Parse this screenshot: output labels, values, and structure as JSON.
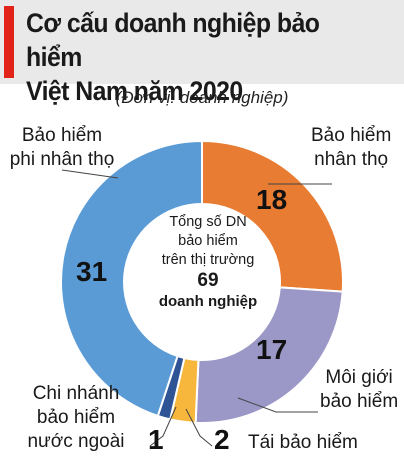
{
  "chart_data": {
    "type": "pie",
    "title_line1": "Cơ cấu doanh nghiệp bảo hiểm",
    "title_line2": "Việt Nam năm 2020",
    "subtitle": "(Đơn vị: doanh nghiệp)",
    "center": {
      "line1": "Tổng số DN",
      "line2": "bảo hiểm",
      "line3": "trên thị trường",
      "total": "69",
      "unit": "doanh nghiệp"
    },
    "slices": [
      {
        "key": "nhantho",
        "label_lines": [
          "Bảo hiểm",
          "nhân thọ"
        ],
        "value": 18,
        "color": "#e97c33"
      },
      {
        "key": "moigioi",
        "label_lines": [
          "Môi giới",
          "bảo hiểm"
        ],
        "value": 17,
        "color": "#9b97c6"
      },
      {
        "key": "taibaohiem",
        "label_lines": [
          "Tái bảo hiểm"
        ],
        "value": 2,
        "color": "#f6b73c"
      },
      {
        "key": "chinhanh",
        "label_lines": [
          "Chi nhánh",
          "bảo hiểm",
          "nước ngoài"
        ],
        "value": 1,
        "color": "#2f5496"
      },
      {
        "key": "phinhantho",
        "label_lines": [
          "Bảo hiểm",
          "phi nhân thọ"
        ],
        "value": 31,
        "color": "#5b9bd5"
      }
    ]
  }
}
